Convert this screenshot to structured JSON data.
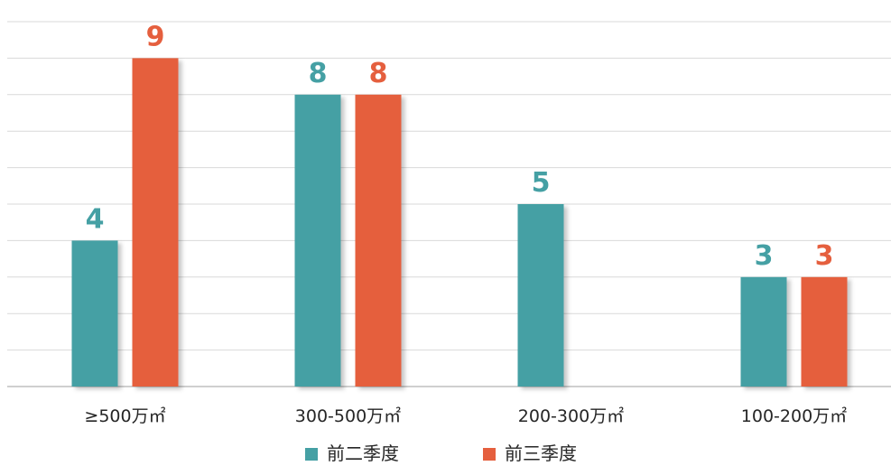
{
  "chart_data": {
    "type": "bar",
    "categories": [
      "≥500万㎡",
      "300-500万㎡",
      "200-300万㎡",
      "100-200万㎡"
    ],
    "series": [
      {
        "name": "前二季度",
        "values": [
          4,
          8,
          5,
          3
        ],
        "color": "#45A0A4"
      },
      {
        "name": "前三季度",
        "values": [
          9,
          8,
          null,
          3
        ],
        "color": "#E55F3E"
      }
    ],
    "ylim": [
      0,
      10.5
    ],
    "grid": true,
    "legend_position": "bottom-center",
    "data_labels": true
  }
}
